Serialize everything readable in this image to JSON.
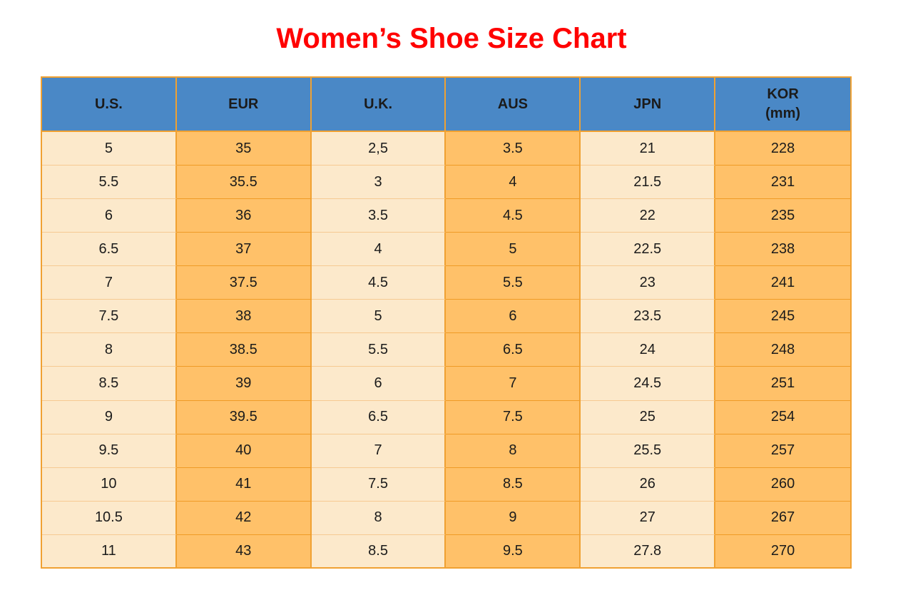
{
  "title": "Women’s Shoe Size Chart",
  "colors": {
    "title_red": "#FF0000",
    "header_blue": "#4A88C6",
    "cell_cream": "#FCE9CB",
    "cell_orange": "#FFC169",
    "border_orange": "#F0A132",
    "divider_cream": "#F6CA92",
    "divider_orange": "#EF9B26",
    "text_dark": "#1B1B1B",
    "page_bg": "#FFFFFF"
  },
  "chart_data": {
    "type": "table",
    "title": "Women’s Shoe Size Chart",
    "columns": [
      "U.S.",
      "EUR",
      "U.K.",
      "AUS",
      "JPN",
      "KOR\n(mm)"
    ],
    "column_fill_pattern": [
      "cream",
      "orange",
      "cream",
      "orange",
      "cream",
      "orange"
    ],
    "rows": [
      [
        "5",
        "35",
        "2,5",
        "3.5",
        "21",
        "228"
      ],
      [
        "5.5",
        "35.5",
        "3",
        "4",
        "21.5",
        "231"
      ],
      [
        "6",
        "36",
        "3.5",
        "4.5",
        "22",
        "235"
      ],
      [
        "6.5",
        "37",
        "4",
        "5",
        "22.5",
        "238"
      ],
      [
        "7",
        "37.5",
        "4.5",
        "5.5",
        "23",
        "241"
      ],
      [
        "7.5",
        "38",
        "5",
        "6",
        "23.5",
        "245"
      ],
      [
        "8",
        "38.5",
        "5.5",
        "6.5",
        "24",
        "248"
      ],
      [
        "8.5",
        "39",
        "6",
        "7",
        "24.5",
        "251"
      ],
      [
        "9",
        "39.5",
        "6.5",
        "7.5",
        "25",
        "254"
      ],
      [
        "9.5",
        "40",
        "7",
        "8",
        "25.5",
        "257"
      ],
      [
        "10",
        "41",
        "7.5",
        "8.5",
        "26",
        "260"
      ],
      [
        "10.5",
        "42",
        "8",
        "9",
        "27",
        "267"
      ],
      [
        "11",
        "43",
        "8.5",
        "9.5",
        "27.8",
        "270"
      ]
    ]
  }
}
